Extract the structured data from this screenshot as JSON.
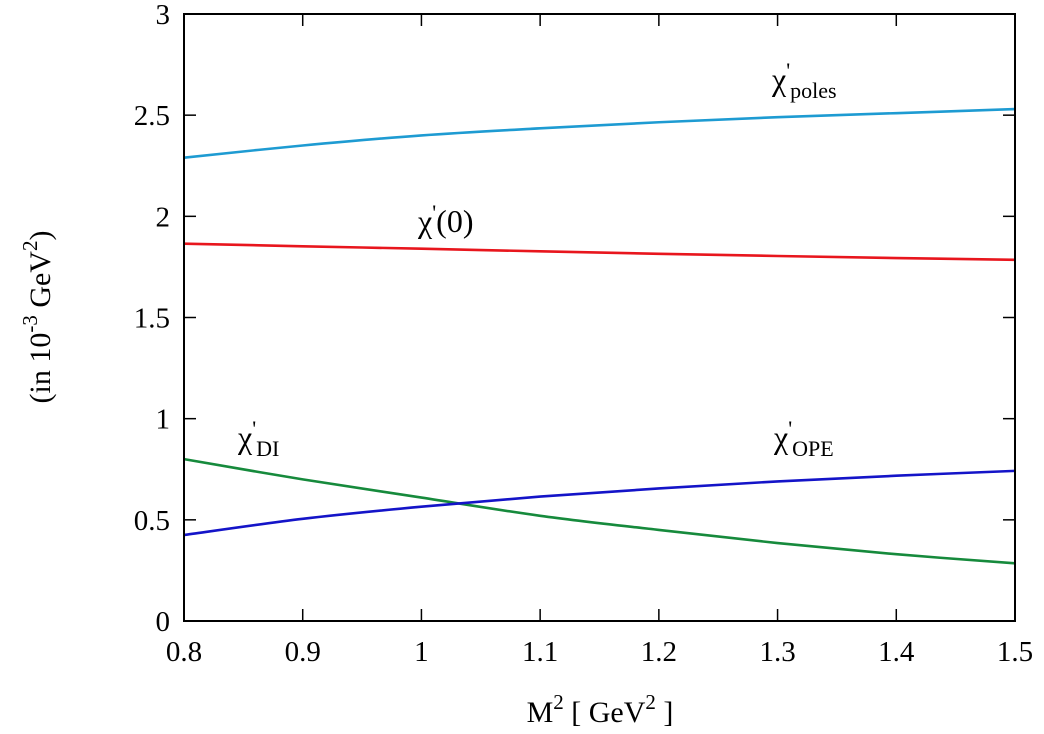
{
  "chart_data": {
    "type": "line",
    "xlabel": {
      "base": "M",
      "sup": "2",
      "mid": " [ GeV",
      "sup2": "2",
      "end": " ]"
    },
    "ylabel": {
      "pre": "(in 10",
      "sup": "-3",
      "mid": " GeV",
      "sup2": "2",
      "end": ")"
    },
    "xlim": [
      0.8,
      1.5
    ],
    "ylim": [
      0,
      3
    ],
    "xticks": [
      "0.8",
      "0.9",
      "1",
      "1.1",
      "1.2",
      "1.3",
      "1.4",
      "1.5"
    ],
    "yticks": [
      "0",
      "0.5",
      "1",
      "1.5",
      "2",
      "2.5",
      "3"
    ],
    "x": [
      0.8,
      0.9,
      1.0,
      1.1,
      1.2,
      1.3,
      1.4,
      1.5
    ],
    "series": [
      {
        "key": "poles",
        "color": "#1e9bd2",
        "values": [
          2.29,
          2.35,
          2.4,
          2.435,
          2.465,
          2.49,
          2.51,
          2.53
        ],
        "label": {
          "chi": "χ",
          "prime": "'",
          "sub": "poles"
        }
      },
      {
        "key": "zero",
        "color": "#e8161d",
        "values": [
          1.865,
          1.852,
          1.84,
          1.827,
          1.815,
          1.804,
          1.794,
          1.785
        ],
        "label": {
          "chi": "χ",
          "prime": "'",
          "sub": "",
          "suffix": "(0)"
        }
      },
      {
        "key": "di",
        "color": "#168a3c",
        "values": [
          0.8,
          0.7,
          0.61,
          0.52,
          0.45,
          0.385,
          0.33,
          0.285
        ],
        "label": {
          "chi": "χ",
          "prime": "'",
          "sub": "DI"
        }
      },
      {
        "key": "ope",
        "color": "#1414c8",
        "values": [
          0.425,
          0.505,
          0.565,
          0.615,
          0.655,
          0.69,
          0.718,
          0.742
        ],
        "label": {
          "chi": "χ",
          "prime": "'",
          "sub": "OPE"
        }
      }
    ]
  }
}
